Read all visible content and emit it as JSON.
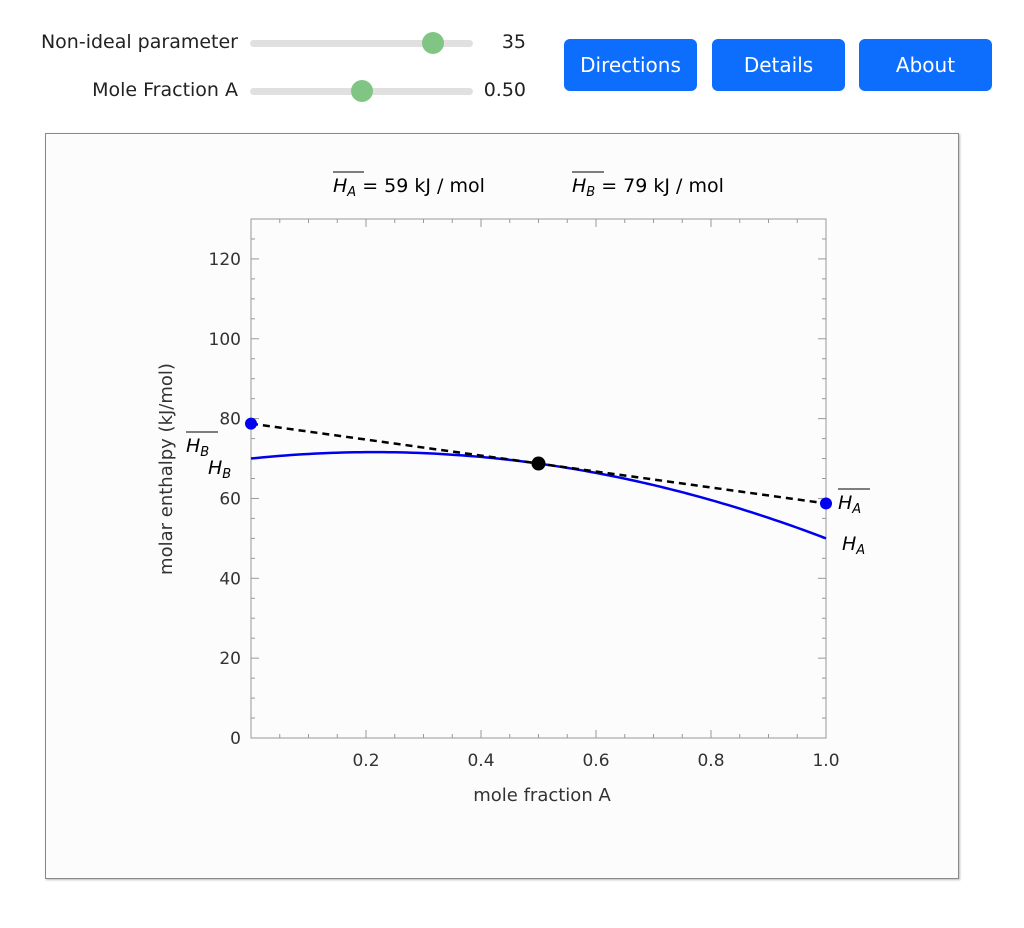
{
  "controls": {
    "sliders": [
      {
        "label": "Non-ideal parameter",
        "value": "35",
        "fraction": 0.82
      },
      {
        "label": "Mole Fraction A",
        "value": "0.50",
        "fraction": 0.5
      }
    ],
    "buttons": [
      "Directions",
      "Details",
      "About"
    ],
    "accent": "#0d6efd",
    "thumb_color": "#80c584"
  },
  "chart_data": {
    "type": "line",
    "header": {
      "ha": "= 59 kJ / mol",
      "hb": "= 79 kJ / mol",
      "ha_sym": "H",
      "ha_sub": "A",
      "hb_sym": "H",
      "hb_sub": "B"
    },
    "xlabel": "mole fraction A",
    "ylabel": "molar enthalpy (kJ/mol)",
    "xlim": [
      0,
      1
    ],
    "ylim": [
      0,
      130
    ],
    "xticks": [
      "0.2",
      "0.4",
      "0.6",
      "0.8",
      "1.0"
    ],
    "yticks": [
      "0",
      "20",
      "40",
      "60",
      "80",
      "100",
      "120"
    ],
    "H_A": 50,
    "H_B": 70,
    "W": 35,
    "x_A": 0.5,
    "HA_bar": 58.75,
    "HB_bar": 78.75,
    "H_mix": 68.75,
    "curve_color": "#0000ee",
    "labels": {
      "HB": "H",
      "HA": "H",
      "sub_A": "A",
      "sub_B": "B"
    }
  }
}
